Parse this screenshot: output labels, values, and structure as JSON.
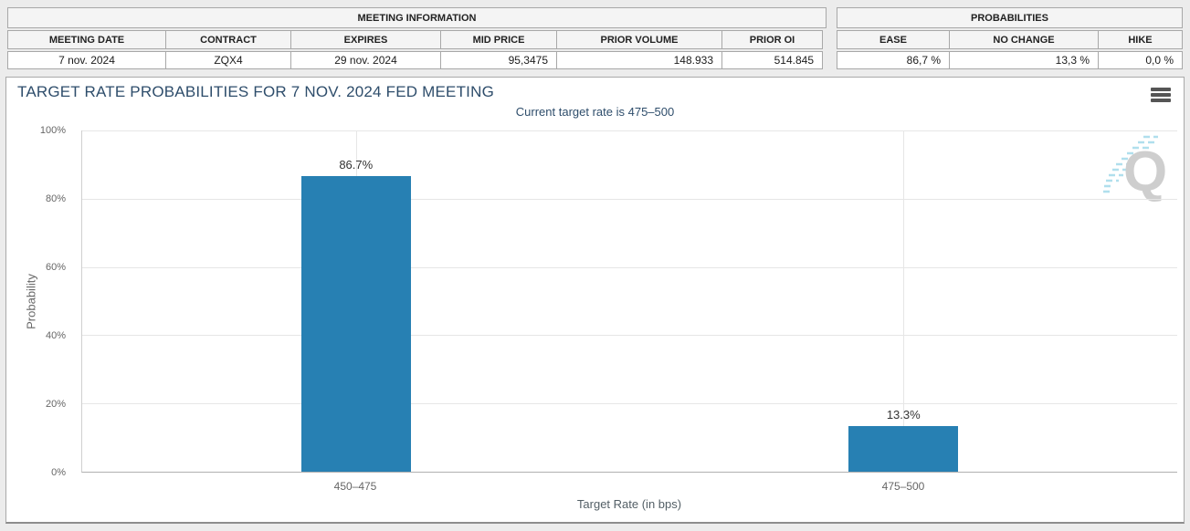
{
  "meeting_information": {
    "title": "MEETING INFORMATION",
    "columns": [
      "MEETING DATE",
      "CONTRACT",
      "EXPIRES",
      "MID PRICE",
      "PRIOR VOLUME",
      "PRIOR OI"
    ],
    "values": [
      "7 nov. 2024",
      "ZQX4",
      "29 nov. 2024",
      "95,3475",
      "148.933",
      "514.845"
    ]
  },
  "probabilities": {
    "title": "PROBABILITIES",
    "columns": [
      "EASE",
      "NO CHANGE",
      "HIKE"
    ],
    "values": [
      "86,7 %",
      "13,3 %",
      "0,0 %"
    ]
  },
  "chart": {
    "title": "TARGET RATE PROBABILITIES FOR 7 NOV. 2024 FED MEETING",
    "subtitle": "Current target rate is 475–500",
    "menu_icon": "hamburger-menu-icon",
    "watermark_letter": "Q"
  },
  "chart_data": {
    "type": "bar",
    "title": "TARGET RATE PROBABILITIES FOR 7 NOV. 2024 FED MEETING",
    "subtitle": "Current target rate is 475–500",
    "categories": [
      "450–475",
      "475–500"
    ],
    "values": [
      86.7,
      13.3
    ],
    "point_labels": [
      "86.7%",
      "13.3%"
    ],
    "xlabel": "Target Rate (in bps)",
    "ylabel": "Probability",
    "ylim": [
      0,
      100
    ],
    "yticks": [
      "0%",
      "20%",
      "40%",
      "60%",
      "80%",
      "100%"
    ],
    "grid": true,
    "legend": "none",
    "bar_color": "#2780B3"
  },
  "colors": {
    "bar": "#2780B3",
    "title_text": "#2E4D6B",
    "page_bg": "#ECECEC",
    "gridline": "#E6E6E6"
  }
}
